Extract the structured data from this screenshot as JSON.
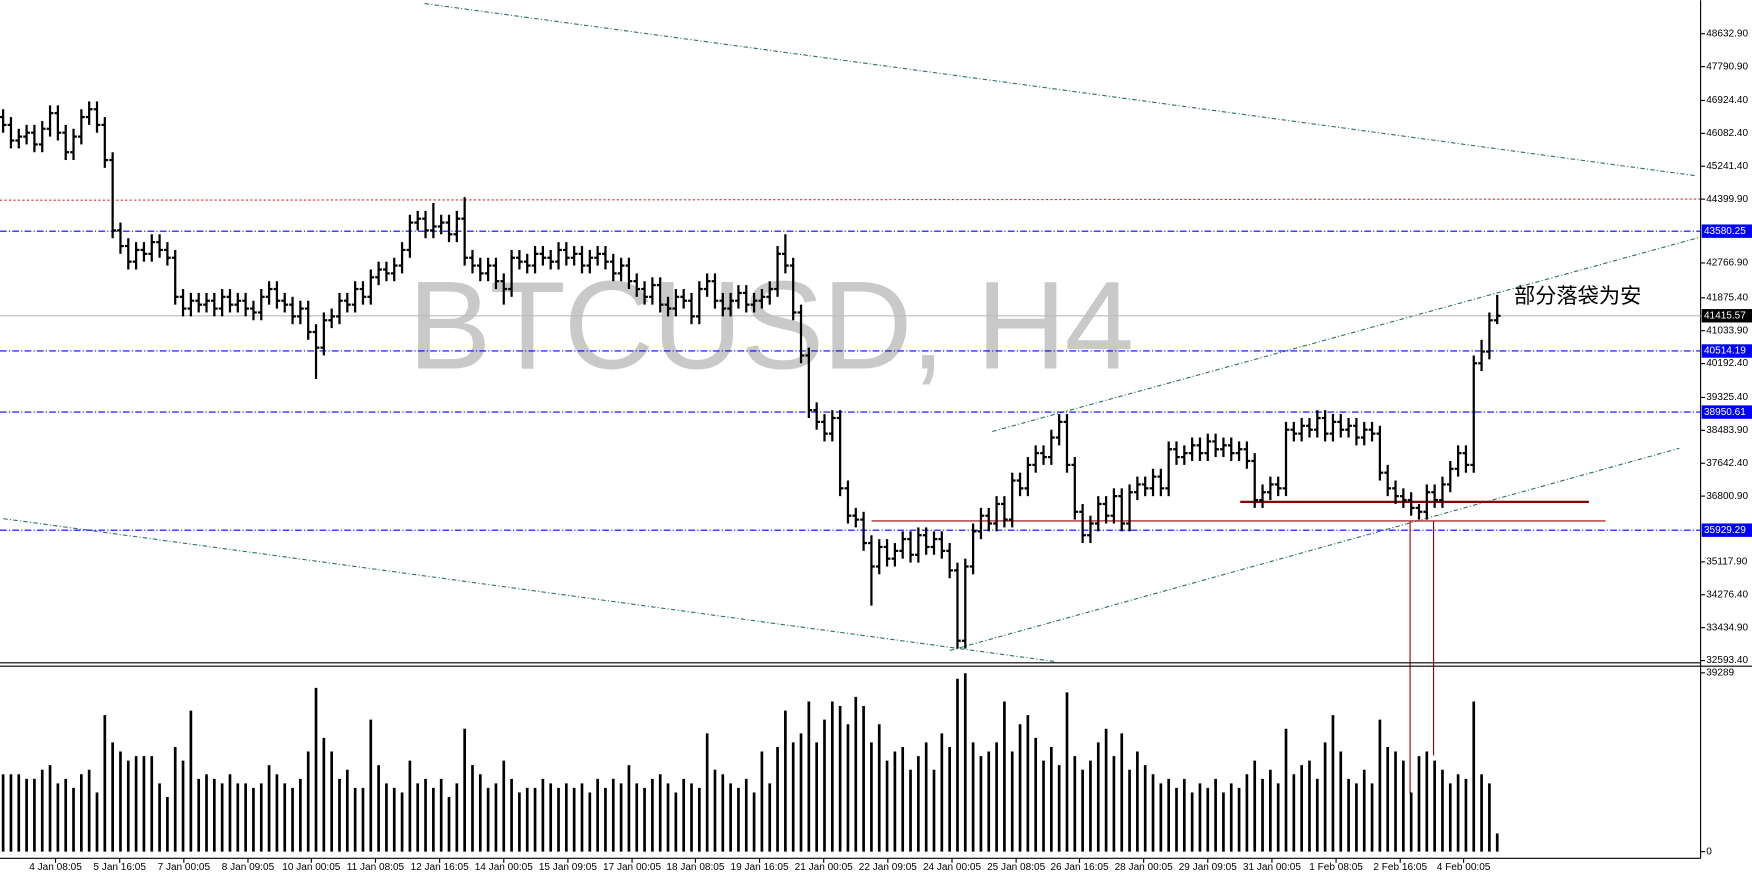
{
  "chart_data": {
    "type": "ohlc",
    "title": "BTCUSD, H4",
    "annotation": "部分落袋为安",
    "color": "#000000",
    "open": [
      46500,
      46300,
      45900,
      46000,
      46100,
      45800,
      46200,
      46600,
      46100,
      45600,
      46000,
      46500,
      46700,
      46300,
      45400,
      43600,
      43200,
      42800,
      43100,
      43000,
      43300,
      43100,
      42900,
      41900,
      41600,
      41800,
      41700,
      41800,
      41600,
      41900,
      41700,
      41800,
      41600,
      41500,
      41900,
      42100,
      41800,
      41700,
      41400,
      41600,
      41000,
      40600,
      41300,
      41400,
      41800,
      41700,
      42100,
      41900,
      42400,
      42600,
      42500,
      42700,
      43100,
      43800,
      43900,
      43600,
      43700,
      43800,
      43500,
      43900,
      42900,
      42700,
      42500,
      42700,
      42300,
      42100,
      42900,
      42800,
      42700,
      43000,
      42900,
      42800,
      43100,
      42900,
      43000,
      42700,
      42900,
      43000,
      42800,
      42500,
      42700,
      42300,
      42100,
      41900,
      42200,
      41700,
      41600,
      41900,
      41800,
      41400,
      42100,
      42300,
      41800,
      41600,
      41800,
      42000,
      41700,
      41800,
      41900,
      42100,
      43000,
      42700,
      41500,
      40400,
      39000,
      38700,
      38400,
      38800,
      37000,
      36300,
      36200,
      35600,
      35000,
      35500,
      35200,
      35400,
      35700,
      35300,
      35800,
      35500,
      35700,
      35400,
      34900,
      33100,
      35000,
      35900,
      36300,
      36100,
      36600,
      36200,
      37200,
      37000,
      37600,
      37900,
      37800,
      38300,
      38700,
      37600,
      36400,
      35800,
      36100,
      36600,
      36300,
      36800,
      36100,
      36900,
      37100,
      37000,
      37300,
      37000,
      38000,
      37800,
      37900,
      38100,
      37900,
      38200,
      38000,
      38100,
      37900,
      38000,
      37700,
      36700,
      36900,
      37100,
      37000,
      38500,
      38400,
      38600,
      38500,
      38800,
      38400,
      38700,
      38500,
      38600,
      38300,
      38500,
      38400,
      37400,
      37000,
      36800,
      36700,
      36500,
      36400,
      36900,
      36700,
      37100,
      37500,
      37900,
      37600,
      40200,
      40500,
      41300
    ],
    "high": [
      46700,
      46500,
      46200,
      46300,
      46300,
      46400,
      46800,
      46800,
      46300,
      46200,
      46700,
      46900,
      46900,
      46500,
      45600,
      43800,
      43400,
      43300,
      43300,
      43500,
      43500,
      43300,
      43100,
      42100,
      42000,
      42000,
      42000,
      42000,
      42100,
      42100,
      42000,
      42000,
      41800,
      42100,
      42300,
      42300,
      42000,
      41900,
      41800,
      41800,
      41200,
      41500,
      41600,
      42000,
      42000,
      42300,
      42300,
      42600,
      42800,
      42800,
      42900,
      43300,
      44000,
      44100,
      44100,
      44300,
      44000,
      44000,
      44100,
      44450,
      43100,
      42900,
      42900,
      42900,
      42500,
      43100,
      43100,
      43000,
      43200,
      43200,
      43100,
      43300,
      43300,
      43200,
      43200,
      43100,
      43200,
      43200,
      43000,
      42900,
      42900,
      42500,
      42300,
      42400,
      42400,
      41900,
      42100,
      42100,
      42000,
      42300,
      42500,
      42500,
      42000,
      42000,
      42200,
      42200,
      42000,
      42100,
      42300,
      43200,
      43500,
      42900,
      41700,
      40600,
      39200,
      38900,
      39000,
      39000,
      37200,
      36500,
      36400,
      35800,
      35700,
      35700,
      35600,
      35900,
      35900,
      36000,
      36000,
      35900,
      35900,
      35600,
      35100,
      35200,
      36100,
      36500,
      36500,
      36800,
      36800,
      37400,
      37400,
      37800,
      38100,
      38100,
      38500,
      38900,
      38900,
      37800,
      36600,
      36300,
      36800,
      36800,
      37000,
      37000,
      37100,
      37300,
      37300,
      37500,
      37500,
      38200,
      38200,
      38100,
      38300,
      38300,
      38400,
      38400,
      38300,
      38300,
      38200,
      38200,
      37900,
      37100,
      37300,
      37300,
      38700,
      38700,
      38800,
      38800,
      39000,
      39000,
      38900,
      38900,
      38800,
      38800,
      38700,
      38700,
      38600,
      37600,
      37200,
      37000,
      36900,
      36600,
      37100,
      37100,
      37300,
      37700,
      38100,
      38100,
      40400,
      40800,
      41500,
      41950
    ],
    "low": [
      46100,
      45700,
      45700,
      45800,
      45600,
      45600,
      46000,
      45900,
      45400,
      45400,
      45800,
      46300,
      46100,
      45200,
      43400,
      43000,
      42600,
      42600,
      42800,
      42800,
      42900,
      42700,
      41700,
      41400,
      41400,
      41500,
      41500,
      41400,
      41400,
      41500,
      41500,
      41400,
      41300,
      41300,
      41700,
      41600,
      41500,
      41200,
      41200,
      40800,
      39800,
      40400,
      41100,
      41200,
      41500,
      41500,
      41700,
      41700,
      42200,
      42300,
      42300,
      42500,
      42900,
      43600,
      43400,
      43400,
      43500,
      43300,
      43300,
      42700,
      42500,
      42300,
      42300,
      42100,
      41700,
      41900,
      42600,
      42500,
      42500,
      42700,
      42600,
      42600,
      42700,
      42700,
      42500,
      42500,
      42700,
      42600,
      42300,
      42300,
      42100,
      41900,
      41700,
      41700,
      41500,
      41400,
      41400,
      41600,
      41200,
      41200,
      41900,
      41600,
      41400,
      41400,
      41600,
      41500,
      41500,
      41600,
      41700,
      41900,
      42500,
      41300,
      40200,
      38800,
      38500,
      38200,
      38200,
      36800,
      36100,
      36000,
      35400,
      34000,
      34800,
      35000,
      35000,
      35200,
      35100,
      35100,
      35300,
      35300,
      35200,
      34700,
      32900,
      32900,
      34800,
      35700,
      35900,
      35900,
      36000,
      36000,
      36800,
      36800,
      37400,
      37600,
      37600,
      38100,
      37400,
      36200,
      35600,
      35600,
      35900,
      36100,
      36100,
      35900,
      35900,
      36700,
      36800,
      36800,
      36800,
      36800,
      37600,
      37600,
      37700,
      37700,
      37700,
      37800,
      37800,
      37700,
      37700,
      37500,
      36500,
      36500,
      36700,
      36800,
      36800,
      38200,
      38200,
      38300,
      38300,
      38200,
      38200,
      38300,
      38300,
      38100,
      38100,
      38200,
      37200,
      36800,
      36600,
      36500,
      36300,
      36200,
      36200,
      36500,
      36500,
      36900,
      37300,
      37400,
      37400,
      40000,
      40300,
      41200
    ],
    "close": [
      46300,
      45900,
      46000,
      46100,
      45800,
      46200,
      46600,
      46100,
      45600,
      46000,
      46500,
      46700,
      46300,
      45400,
      43600,
      43200,
      42800,
      43100,
      43000,
      43300,
      43100,
      42900,
      41900,
      41600,
      41800,
      41700,
      41800,
      41600,
      41900,
      41700,
      41800,
      41600,
      41500,
      41900,
      42100,
      41800,
      41700,
      41400,
      41600,
      41000,
      40600,
      41300,
      41400,
      41800,
      41700,
      42100,
      41900,
      42400,
      42600,
      42500,
      42700,
      43100,
      43800,
      43900,
      43600,
      43700,
      43800,
      43500,
      43900,
      42900,
      42700,
      42500,
      42700,
      42300,
      42100,
      42900,
      42800,
      42700,
      43000,
      42900,
      42800,
      43100,
      42900,
      43000,
      42700,
      42900,
      43000,
      42800,
      42500,
      42700,
      42300,
      42100,
      41900,
      42200,
      41700,
      41600,
      41900,
      41800,
      41400,
      42100,
      42300,
      41800,
      41600,
      41800,
      42000,
      41700,
      41800,
      41900,
      42100,
      43000,
      42700,
      41500,
      40400,
      39000,
      38700,
      38400,
      38800,
      37000,
      36300,
      36200,
      35600,
      35000,
      35500,
      35200,
      35400,
      35700,
      35300,
      35800,
      35500,
      35700,
      35400,
      34900,
      33100,
      35000,
      35900,
      36300,
      36100,
      36600,
      36200,
      37200,
      37000,
      37600,
      37900,
      37800,
      38300,
      38700,
      37600,
      36400,
      35800,
      36100,
      36600,
      36300,
      36800,
      36100,
      36900,
      37100,
      37000,
      37300,
      37000,
      38000,
      37800,
      37900,
      38100,
      37900,
      38200,
      38000,
      38100,
      37900,
      38000,
      37700,
      36700,
      36900,
      37100,
      37000,
      38500,
      38400,
      38600,
      38500,
      38800,
      38400,
      38700,
      38500,
      38600,
      38300,
      38500,
      38400,
      37400,
      37000,
      36800,
      36700,
      36500,
      36400,
      36900,
      36700,
      37100,
      37500,
      37900,
      37600,
      40200,
      40500,
      41300,
      41415.57
    ],
    "xlim": [
      -0.4,
      217
    ],
    "xticks": [
      {
        "value": 6.7,
        "label": "4 Jan 08:05"
      },
      {
        "value": 14.9,
        "label": "5 Jan 16:05"
      },
      {
        "value": 23.1,
        "label": "7 Jan 00:05"
      },
      {
        "value": 31.3,
        "label": "8 Jan 09:05"
      },
      {
        "value": 39.4,
        "label": "10 Jan 00:05"
      },
      {
        "value": 47.6,
        "label": "11 Jan 08:05"
      },
      {
        "value": 55.8,
        "label": "12 Jan 16:05"
      },
      {
        "value": 64.0,
        "label": "14 Jan 00:05"
      },
      {
        "value": 72.2,
        "label": "15 Jan 09:05"
      },
      {
        "value": 80.4,
        "label": "17 Jan 00:05"
      },
      {
        "value": 88.5,
        "label": "18 Jan 08:05"
      },
      {
        "value": 96.7,
        "label": "19 Jan 16:05"
      },
      {
        "value": 104.9,
        "label": "21 Jan 00:05"
      },
      {
        "value": 113.1,
        "label": "22 Jan 09:05"
      },
      {
        "value": 121.3,
        "label": "24 Jan 00:05"
      },
      {
        "value": 129.5,
        "label": "25 Jan 08:05"
      },
      {
        "value": 137.6,
        "label": "26 Jan 16:05"
      },
      {
        "value": 145.8,
        "label": "28 Jan 00:05"
      },
      {
        "value": 154.0,
        "label": "29 Jan 09:05"
      },
      {
        "value": 162.2,
        "label": "31 Jan 00:05"
      },
      {
        "value": 170.4,
        "label": "1 Feb 08:05"
      },
      {
        "value": 178.6,
        "label": "2 Feb 16:05"
      },
      {
        "value": 186.7,
        "label": "4 Feb 00:05"
      }
    ],
    "ylim": [
      32536,
      49490
    ],
    "yticks": [
      {
        "value": 48632.9,
        "label": "48632.90"
      },
      {
        "value": 47790.9,
        "label": "47790.90"
      },
      {
        "value": 46924.4,
        "label": "46924.40"
      },
      {
        "value": 46082.4,
        "label": "46082.40"
      },
      {
        "value": 45241.4,
        "label": "45241.40"
      },
      {
        "value": 44399.9,
        "label": "44399.90"
      },
      {
        "value": 42766.9,
        "label": "42766.90"
      },
      {
        "value": 41875.4,
        "label": "41875.40"
      },
      {
        "value": 41033.9,
        "label": "41033.90"
      },
      {
        "value": 40192.4,
        "label": "40192.40"
      },
      {
        "value": 39325.4,
        "label": "39325.40"
      },
      {
        "value": 38483.9,
        "label": "38483.90"
      },
      {
        "value": 37642.4,
        "label": "37642.40"
      },
      {
        "value": 36800.9,
        "label": "36800.90"
      },
      {
        "value": 35117.9,
        "label": "35117.90"
      },
      {
        "value": 34276.4,
        "label": "34276.40"
      },
      {
        "value": 33434.9,
        "label": "33434.90"
      },
      {
        "value": 32593.4,
        "label": "32593.40"
      }
    ],
    "levels": [
      43580.25,
      40514.19,
      38950.61,
      35929.29
    ],
    "level_color": "#0000ff",
    "current_price": 41415.57,
    "current_color": "#000000",
    "volume": {
      "color": "#000000",
      "ylim": [
        0,
        39289
      ],
      "yticks": [
        39289,
        0
      ],
      "values": [
        17000,
        17000,
        17000,
        16000,
        16000,
        18000,
        19000,
        15000,
        16000,
        14000,
        17000,
        18000,
        13000,
        30000,
        24000,
        22000,
        20000,
        21000,
        21000,
        21000,
        15000,
        12000,
        23000,
        20000,
        31000,
        16000,
        17000,
        16000,
        15000,
        17000,
        15000,
        15000,
        14000,
        15000,
        19000,
        17000,
        15000,
        14000,
        16000,
        22000,
        36000,
        25000,
        22000,
        16000,
        18000,
        14000,
        14000,
        29000,
        19000,
        15000,
        14000,
        13000,
        20000,
        15000,
        16000,
        14000,
        16000,
        12000,
        15000,
        27000,
        19000,
        17000,
        14000,
        15000,
        20000,
        16000,
        13000,
        14000,
        14000,
        16000,
        15000,
        14000,
        15000,
        14000,
        15000,
        13000,
        16000,
        14000,
        16000,
        15000,
        19000,
        15000,
        14000,
        16000,
        17000,
        15000,
        13000,
        16000,
        15000,
        14000,
        26000,
        18000,
        17000,
        15000,
        14000,
        16000,
        13000,
        22000,
        15000,
        23000,
        31000,
        24000,
        26000,
        33000,
        24000,
        29000,
        33000,
        32000,
        28000,
        34000,
        32000,
        24000,
        28000,
        20000,
        22000,
        23000,
        18000,
        21000,
        24000,
        18000,
        26000,
        23000,
        38000,
        39200,
        24000,
        21000,
        22000,
        24000,
        33000,
        22000,
        28000,
        30000,
        25000,
        20000,
        23000,
        19000,
        35000,
        21000,
        18000,
        20000,
        24000,
        27000,
        21000,
        26000,
        18000,
        22000,
        19000,
        17000,
        15000,
        16000,
        14000,
        16000,
        13000,
        15000,
        14000,
        16000,
        13000,
        15000,
        14000,
        17000,
        20000,
        16000,
        18000,
        15000,
        27000,
        17000,
        19000,
        20000,
        16000,
        24000,
        30000,
        22000,
        16000,
        15000,
        18000,
        15000,
        29000,
        23000,
        22000,
        20000,
        13000,
        21000,
        22000,
        20000,
        18000,
        15000,
        17000,
        16000,
        33000,
        17000,
        15000,
        4000
      ]
    }
  }
}
